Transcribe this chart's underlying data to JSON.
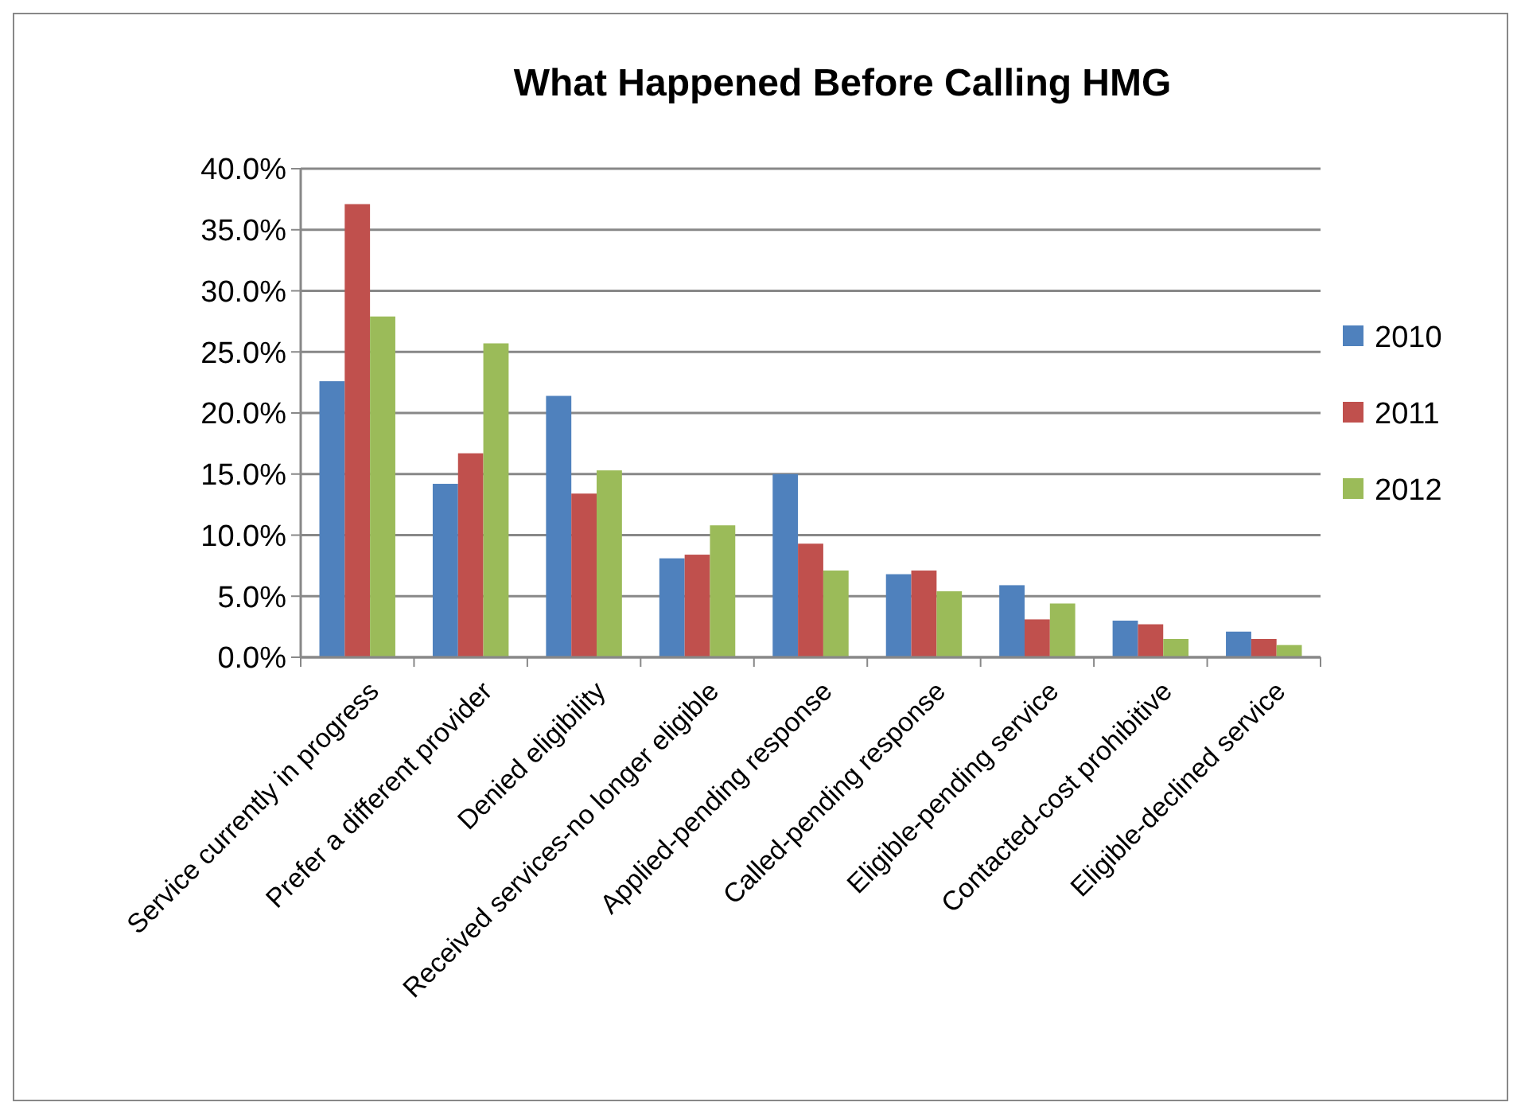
{
  "chart_data": {
    "type": "bar",
    "title": "What Happened Before Calling HMG",
    "categories": [
      "Service currently in progress",
      "Prefer a different provider",
      "Denied eligibility",
      "Received services-no longer eligible",
      "Applied-pending response",
      "Called-pending response",
      "Eligible-pending service",
      "Contacted-cost prohibitive",
      "Eligible-declined service"
    ],
    "series": [
      {
        "name": "2010",
        "color": "#4f81bd",
        "values": [
          22.6,
          14.2,
          21.4,
          8.1,
          15.0,
          6.8,
          5.9,
          3.0,
          2.1
        ]
      },
      {
        "name": "2011",
        "color": "#c0504d",
        "values": [
          37.1,
          16.7,
          13.4,
          8.4,
          9.3,
          7.1,
          3.1,
          2.7,
          1.5
        ]
      },
      {
        "name": "2012",
        "color": "#9bbb59",
        "values": [
          27.9,
          25.7,
          15.3,
          10.8,
          7.1,
          5.4,
          4.4,
          1.5,
          1.0
        ]
      }
    ],
    "ylim": [
      0,
      40
    ],
    "yticks": [
      {
        "value": 0,
        "label": "0.0%"
      },
      {
        "value": 5,
        "label": "5.0%"
      },
      {
        "value": 10,
        "label": "10.0%"
      },
      {
        "value": 15,
        "label": "15.0%"
      },
      {
        "value": 20,
        "label": "20.0%"
      },
      {
        "value": 25,
        "label": "25.0%"
      },
      {
        "value": 30,
        "label": "30.0%"
      },
      {
        "value": 35,
        "label": "35.0%"
      },
      {
        "value": 40,
        "label": "40.0%"
      }
    ],
    "grid": "y",
    "legend": "right"
  }
}
